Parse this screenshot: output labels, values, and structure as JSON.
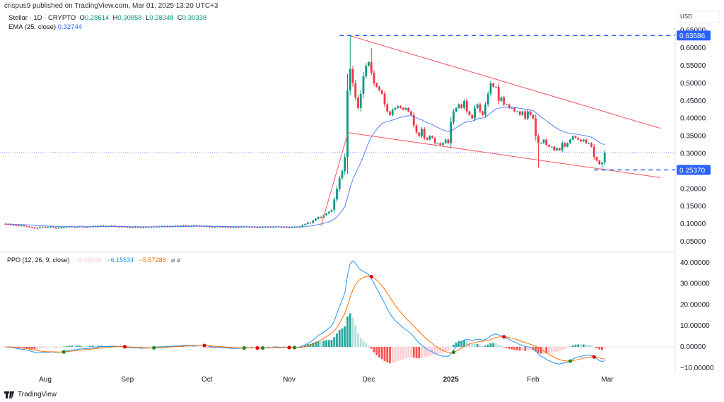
{
  "header": {
    "published": "crispus9 published on TradingView.com, Mar 01, 2025 13:20 UTC+3",
    "symbol": "Stellar · 1D · CRYPTO",
    "o_label": "O",
    "o": "0.28614",
    "h_label": "H",
    "h": "0.30858",
    "l_label": "L",
    "l": "0.28348",
    "c_label": "C",
    "c": "0.30338",
    "ema_label": "EMA (25, close)",
    "ema_value": "0.32744"
  },
  "ppo_legend": {
    "label": "PPO (12, 26, 9, close)",
    "hist": "−0.58246",
    "ppo": "−6.15534",
    "signal": "−5.57288",
    "icons": "⌀ ⌀"
  },
  "currency": "USD",
  "brand": "TradingView",
  "colors": {
    "up": "#089981",
    "down": "#f23645",
    "ema": "#2962ff",
    "trend": "#f7525f",
    "ppo": "#2196f3",
    "signal": "#ff6d00",
    "marker": "#2962ff"
  },
  "chart_data": [
    {
      "type": "candlestick",
      "title": "Stellar · 1D · CRYPTO",
      "start_date": "2024-07-17",
      "ylim": [
        0.03,
        0.66
      ],
      "yticks": [
        "0.65000",
        "0.60000",
        "0.55000",
        "0.50000",
        "0.45000",
        "0.40000",
        "0.35000",
        "0.30000",
        "0.20000",
        "0.15000",
        "0.10000",
        "0.05000"
      ],
      "xticks": [
        {
          "label": "Aug",
          "date": "2024-08-01"
        },
        {
          "label": "Sep",
          "date": "2024-09-01"
        },
        {
          "label": "Oct",
          "date": "2024-10-01"
        },
        {
          "label": "Nov",
          "date": "2024-11-01"
        },
        {
          "label": "Dec",
          "date": "2024-12-01"
        },
        {
          "label": "2025",
          "date": "2025-01-01"
        },
        {
          "label": "Feb",
          "date": "2025-02-01"
        },
        {
          "label": "Mar",
          "date": "2025-03-01"
        }
      ],
      "closes": [
        0.1,
        0.099,
        0.098,
        0.097,
        0.096,
        0.095,
        0.096,
        0.094,
        0.093,
        0.091,
        0.09,
        0.088,
        0.089,
        0.092,
        0.091,
        0.09,
        0.091,
        0.092,
        0.09,
        0.088,
        0.089,
        0.09,
        0.091,
        0.092,
        0.093,
        0.092,
        0.091,
        0.092,
        0.093,
        0.092,
        0.091,
        0.092,
        0.093,
        0.094,
        0.093,
        0.094,
        0.095,
        0.094,
        0.093,
        0.094,
        0.095,
        0.094,
        0.093,
        0.092,
        0.093,
        0.092,
        0.091,
        0.09,
        0.091,
        0.092,
        0.091,
        0.09,
        0.091,
        0.092,
        0.091,
        0.092,
        0.093,
        0.092,
        0.093,
        0.094,
        0.093,
        0.094,
        0.093,
        0.094,
        0.095,
        0.094,
        0.095,
        0.096,
        0.095,
        0.094,
        0.095,
        0.096,
        0.095,
        0.094,
        0.095,
        0.094,
        0.094,
        0.092,
        0.091,
        0.092,
        0.093,
        0.092,
        0.091,
        0.092,
        0.091,
        0.09,
        0.091,
        0.092,
        0.091,
        0.092,
        0.093,
        0.092,
        0.091,
        0.092,
        0.091,
        0.09,
        0.091,
        0.092,
        0.091,
        0.092,
        0.091,
        0.092,
        0.093,
        0.092,
        0.091,
        0.092,
        0.091,
        0.09,
        0.091,
        0.092,
        0.091,
        0.093,
        0.097,
        0.1,
        0.104,
        0.103,
        0.11,
        0.115,
        0.12,
        0.118,
        0.125,
        0.13,
        0.135,
        0.14,
        0.17,
        0.2,
        0.23,
        0.25,
        0.29,
        0.48,
        0.54,
        0.5,
        0.46,
        0.43,
        0.47,
        0.52,
        0.55,
        0.56,
        0.53,
        0.5,
        0.49,
        0.48,
        0.47,
        0.44,
        0.42,
        0.41,
        0.425,
        0.43,
        0.435,
        0.43,
        0.425,
        0.43,
        0.42,
        0.41,
        0.38,
        0.36,
        0.35,
        0.37,
        0.345,
        0.34,
        0.35,
        0.345,
        0.33,
        0.33,
        0.325,
        0.33,
        0.34,
        0.33,
        0.39,
        0.42,
        0.43,
        0.44,
        0.43,
        0.45,
        0.42,
        0.41,
        0.4,
        0.43,
        0.44,
        0.42,
        0.41,
        0.44,
        0.47,
        0.5,
        0.49,
        0.49,
        0.45,
        0.46,
        0.44,
        0.44,
        0.43,
        0.43,
        0.42,
        0.42,
        0.41,
        0.42,
        0.4,
        0.42,
        0.41,
        0.4,
        0.35,
        0.33,
        0.33,
        0.34,
        0.325,
        0.32,
        0.32,
        0.31,
        0.315,
        0.31,
        0.33,
        0.32,
        0.33,
        0.34,
        0.35,
        0.345,
        0.34,
        0.335,
        0.34,
        0.33,
        0.33,
        0.32,
        0.29,
        0.28,
        0.27,
        0.275,
        0.30338
      ],
      "extremes": [
        {
          "date": "2024-11-24",
          "high": 0.63586
        },
        {
          "date": "2024-12-02",
          "high": 0.6
        },
        {
          "date": "2025-02-03",
          "low": 0.26
        },
        {
          "date": "2025-02-27",
          "low": 0.2537
        }
      ],
      "ema": {
        "period": 25,
        "last": 0.32744
      },
      "price_labels": [
        {
          "value": "0.63586",
          "price": 0.63586,
          "from": "2024-11-20"
        },
        {
          "value": "0.25370",
          "price": 0.2537,
          "from": "2025-02-24"
        }
      ],
      "last_price": 0.30338,
      "trendlines": [
        {
          "from": {
            "date": "2024-11-24",
            "price": 0.635
          },
          "to": {
            "date": "2025-03-21",
            "price": 0.372
          }
        },
        {
          "from": {
            "date": "2024-11-23",
            "price": 0.36
          },
          "to": {
            "date": "2025-03-21",
            "price": 0.232
          }
        },
        {
          "from": {
            "date": "2024-11-13",
            "price": 0.095
          },
          "to": {
            "date": "2024-11-23",
            "price": 0.355
          }
        }
      ]
    },
    {
      "type": "line+bar",
      "title": "PPO (12, 26, 9, close)",
      "ylim": [
        -12,
        42
      ],
      "yticks": [
        "40.00000",
        "30.00000",
        "20.00000",
        "10.00000",
        "0.00000",
        "−10.00000"
      ],
      "series": [
        {
          "name": "PPO",
          "fast": 12,
          "slow": 26
        },
        {
          "name": "Signal",
          "period": 9
        },
        {
          "name": "Histogram"
        }
      ]
    }
  ]
}
